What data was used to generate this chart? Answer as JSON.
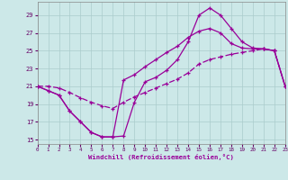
{
  "xlabel": "Windchill (Refroidissement éolien,°C)",
  "xlim": [
    0,
    23
  ],
  "ylim": [
    14.5,
    30.5
  ],
  "yticks": [
    15,
    17,
    19,
    21,
    23,
    25,
    27,
    29
  ],
  "xticks": [
    0,
    1,
    2,
    3,
    4,
    5,
    6,
    7,
    8,
    9,
    10,
    11,
    12,
    13,
    14,
    15,
    16,
    17,
    18,
    19,
    20,
    21,
    22,
    23
  ],
  "bg_color": "#cce8e8",
  "grid_color": "#aacccc",
  "line_color": "#990099",
  "line1_x": [
    0,
    1,
    2,
    3,
    4,
    5,
    6,
    7,
    8,
    9,
    10,
    11,
    12,
    13,
    14,
    15,
    16,
    17,
    18,
    19,
    20,
    21,
    22,
    23
  ],
  "line1_y": [
    21.0,
    20.5,
    20.0,
    18.2,
    17.0,
    15.8,
    15.3,
    15.3,
    15.4,
    19.2,
    21.5,
    22.0,
    22.8,
    24.0,
    26.0,
    29.0,
    29.8,
    29.0,
    27.5,
    26.0,
    25.3,
    25.2,
    25.0,
    21.0
  ],
  "line2_x": [
    0,
    1,
    2,
    3,
    4,
    5,
    6,
    7,
    8,
    9,
    10,
    11,
    12,
    13,
    14,
    15,
    16,
    17,
    18,
    19,
    20,
    21,
    22,
    23
  ],
  "line2_y": [
    21.0,
    20.5,
    20.0,
    18.2,
    17.0,
    15.8,
    15.3,
    15.3,
    21.7,
    22.3,
    23.2,
    24.0,
    24.8,
    25.5,
    26.5,
    27.2,
    27.5,
    27.0,
    25.8,
    25.3,
    25.2,
    25.2,
    25.0,
    21.0
  ],
  "line3_x": [
    0,
    1,
    2,
    3,
    4,
    5,
    6,
    7,
    8,
    9,
    10,
    11,
    12,
    13,
    14,
    15,
    16,
    17,
    18,
    19,
    20,
    21,
    22,
    23
  ],
  "line3_y": [
    21.0,
    21.0,
    20.8,
    20.3,
    19.7,
    19.2,
    18.8,
    18.5,
    19.2,
    19.8,
    20.3,
    20.8,
    21.3,
    21.8,
    22.5,
    23.5,
    24.0,
    24.3,
    24.6,
    24.8,
    25.0,
    25.2,
    25.0,
    21.0
  ]
}
